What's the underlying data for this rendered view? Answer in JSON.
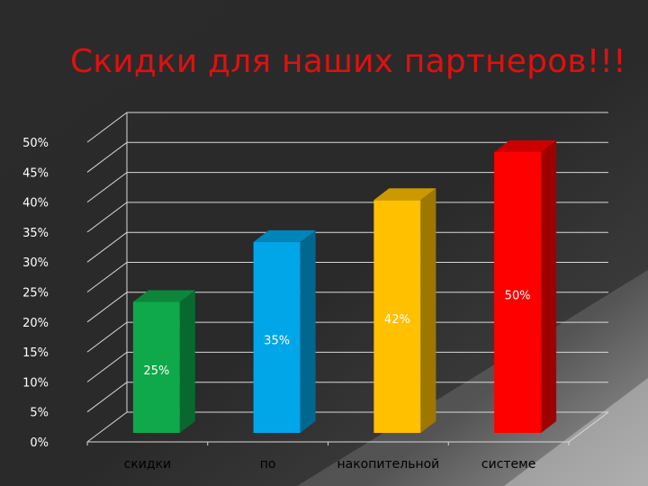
{
  "slide": {
    "title": "Скидки для наших партнеров!!!"
  },
  "colors": {
    "background": "#2a2a2a",
    "title": "#e01010"
  },
  "chart_data": {
    "type": "bar",
    "title": "",
    "xlabel": "",
    "ylabel": "",
    "categories": [
      "скидки",
      "по",
      "накопительной",
      "системе"
    ],
    "values": [
      0.25,
      0.35,
      0.42,
      0.5
    ],
    "data_labels": [
      "25%",
      "35%",
      "42%",
      "50%"
    ],
    "bar_colors": [
      "#0fa84a",
      "#00a6e8",
      "#ffc000",
      "#ff0000"
    ],
    "label_colors": [
      "#ffffff",
      "#ffffff",
      "#ffffff",
      "#ffffff"
    ],
    "ylim": [
      0,
      0.5
    ],
    "yticks": [
      "0%",
      "5%",
      "10%",
      "15%",
      "20%",
      "25%",
      "30%",
      "35%",
      "40%",
      "45%",
      "50%"
    ],
    "grid": true,
    "legend": "none",
    "style": "3d"
  }
}
